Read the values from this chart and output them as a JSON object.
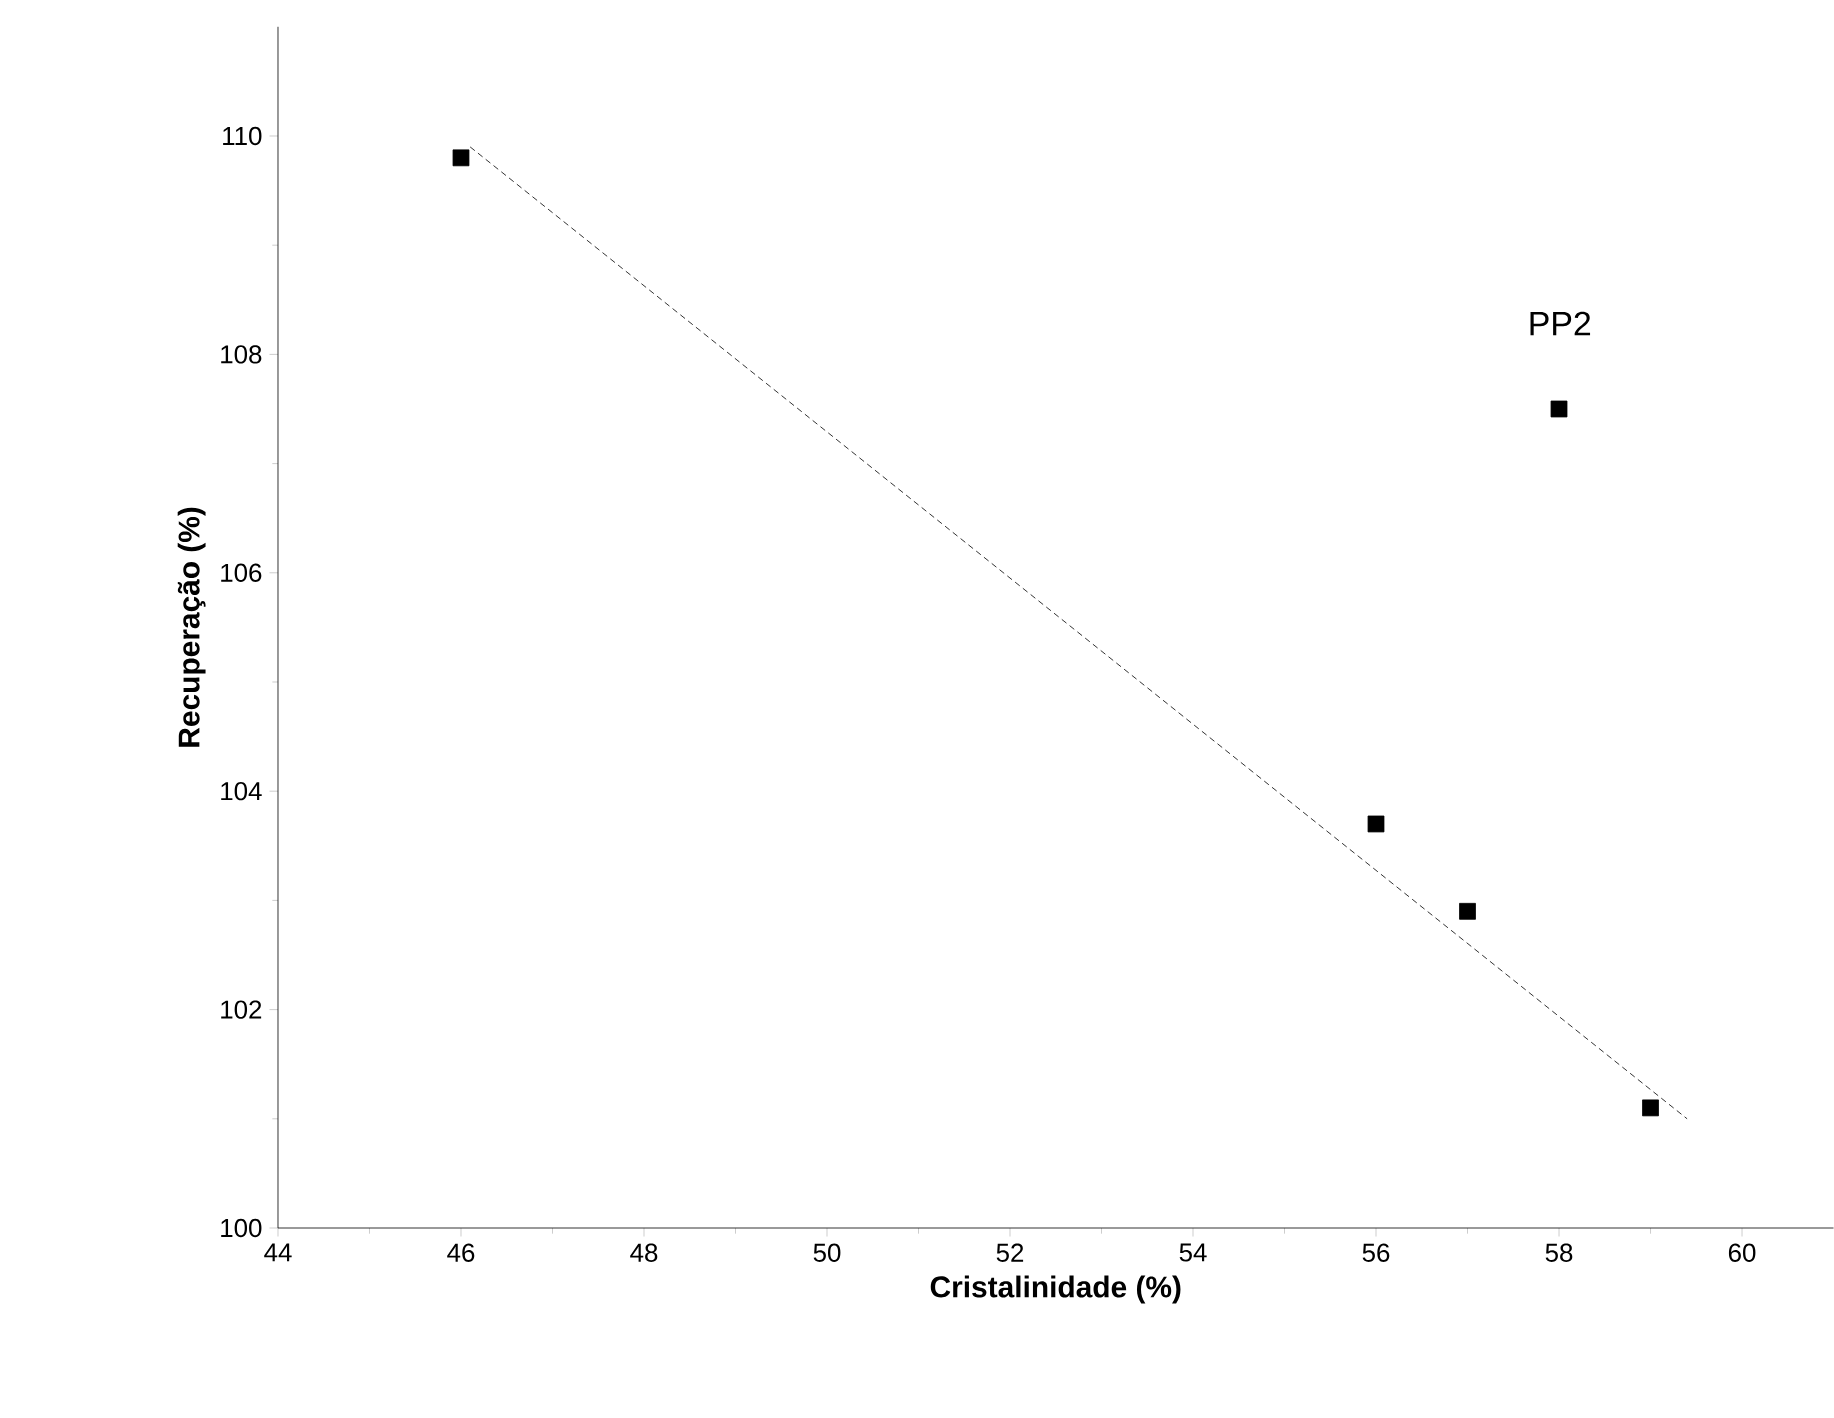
{
  "chart_data": {
    "type": "scatter",
    "xlabel": "Cristalinidade (%)",
    "ylabel": "Recuperação (%)",
    "xlim": [
      44,
      61
    ],
    "xticks": [
      44,
      46,
      48,
      50,
      52,
      54,
      56,
      58,
      60
    ],
    "ylim": [
      100,
      111
    ],
    "yticks": [
      100,
      102,
      104,
      106,
      108,
      110
    ],
    "grid": false,
    "series": [
      {
        "color": "#000000",
        "marker": "square",
        "x": [
          46,
          56,
          57,
          58,
          59
        ],
        "values": [
          109.8,
          103.7,
          102.9,
          107.5,
          101.1
        ]
      },
      {
        "type": "line",
        "color": "#000000",
        "marker": "none",
        "line_style": "dashed",
        "x": [
          46.1,
          59.4
        ],
        "values": [
          109.9,
          101.0
        ]
      }
    ],
    "annotations": [
      "PP2"
    ]
  }
}
